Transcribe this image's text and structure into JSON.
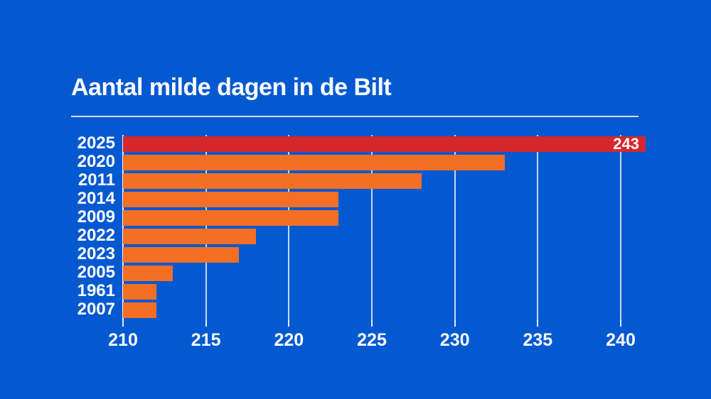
{
  "title": "Aantal milde dagen in de Bilt",
  "colors": {
    "background": "#0459d1",
    "bar_orange": "#f26f24",
    "bar_highlight_red": "#d7262c",
    "text": "#ffffff",
    "grid_line": "#e6edfa"
  },
  "chart_data": {
    "type": "bar",
    "orientation": "horizontal",
    "title": "Aantal milde dagen in de Bilt",
    "categories": [
      "2025",
      "2020",
      "2011",
      "2014",
      "2009",
      "2022",
      "2023",
      "2005",
      "1961",
      "2007"
    ],
    "values": [
      243,
      233,
      228,
      223,
      223,
      218,
      217,
      213,
      212,
      212
    ],
    "highlight": {
      "category": "2025",
      "value_label": "243",
      "color": "#d7262c"
    },
    "bar_color": "#f26f24",
    "xticks": [
      "210",
      "215",
      "220",
      "225",
      "230",
      "235",
      "240"
    ],
    "xtick_values": [
      210,
      215,
      220,
      225,
      230,
      235,
      240
    ],
    "xlim": [
      210,
      241.5
    ],
    "grid": true,
    "legend": false,
    "xlabel": "",
    "ylabel": ""
  }
}
